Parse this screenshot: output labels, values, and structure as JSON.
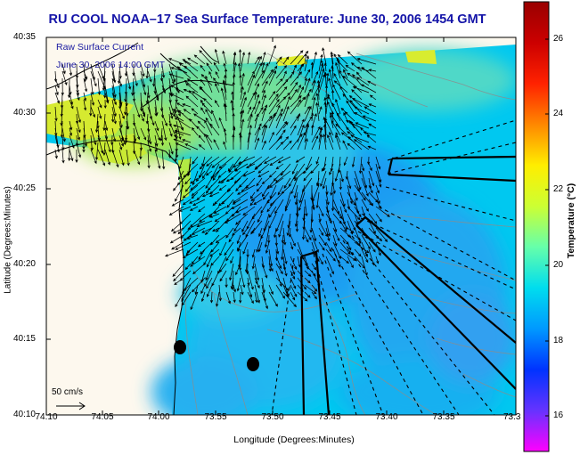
{
  "title": "RU COOL   NOAA–17  Sea Surface Temperature:  June 30, 2006 1454 GMT",
  "legend": {
    "line1": "Raw Surface Current",
    "line2": "June 30, 2006 14:00 GMT"
  },
  "axes": {
    "xlabel": "Longitude (Degrees:Minutes)",
    "ylabel": "Latitude (Degrees:Minutes)",
    "xticks": [
      "74:10",
      "74:05",
      "74:00",
      "73:55",
      "73:50",
      "73:45",
      "73:40",
      "73:35",
      "73:3"
    ],
    "yticks": [
      "40:35",
      "40:30",
      "40:25",
      "40:20",
      "40:15",
      "40:10"
    ]
  },
  "scale_vector": {
    "label": "50 cm/s"
  },
  "colorbar": {
    "label": "Temperature (°C)",
    "ticks": [
      "26",
      "24",
      "22",
      "20",
      "18",
      "16"
    ],
    "range": [
      15,
      27.2
    ],
    "colors": [
      "#ff00ff",
      "#6633ff",
      "#0033ff",
      "#0099ff",
      "#00ddee",
      "#66ffaa",
      "#ccff33",
      "#ffee00",
      "#ff8800",
      "#ff2200",
      "#cc0000",
      "#990000"
    ]
  },
  "map": {
    "land_color": "#fdf8ee",
    "sst_colors": [
      "#00c8f0",
      "#18a8f0",
      "#40d6d0",
      "#6ee0a0",
      "#b6ea3c",
      "#d8ec30"
    ],
    "features": [
      "coastline",
      "bathymetry-contours",
      "current-vectors",
      "sampling-lines",
      "stations"
    ]
  }
}
